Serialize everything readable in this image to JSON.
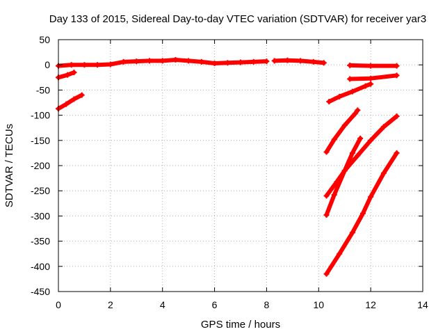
{
  "chart_data": {
    "type": "line",
    "title": "Day 133 of 2015, Sidereal Day-to-day VTEC variation (SDTVAR) for receiver yar3",
    "xlabel": "GPS time / hours",
    "ylabel": "SDTVAR / TECUs",
    "xlim": [
      0,
      14
    ],
    "ylim": [
      -450,
      50
    ],
    "xticks": [
      0,
      2,
      4,
      6,
      8,
      10,
      12,
      14
    ],
    "yticks": [
      50,
      0,
      -50,
      -100,
      -150,
      -200,
      -250,
      -300,
      -350,
      -400,
      -450
    ],
    "grid": true,
    "legend": "none",
    "color": "#ff0000",
    "series": [
      {
        "points": [
          [
            0.0,
            -2
          ],
          [
            0.5,
            0
          ],
          [
            1.0,
            0
          ],
          [
            1.5,
            0
          ],
          [
            2.0,
            1
          ],
          [
            2.5,
            6
          ],
          [
            3.0,
            7
          ],
          [
            3.5,
            8
          ],
          [
            4.0,
            8
          ],
          [
            4.5,
            10
          ],
          [
            5.0,
            8
          ],
          [
            5.5,
            6
          ],
          [
            6.0,
            3
          ],
          [
            6.5,
            4
          ],
          [
            7.0,
            5
          ],
          [
            7.5,
            6
          ],
          [
            8.0,
            7
          ]
        ]
      },
      {
        "points": [
          [
            8.3,
            8
          ],
          [
            8.8,
            9
          ],
          [
            9.3,
            8
          ],
          [
            9.8,
            6
          ],
          [
            10.2,
            4
          ]
        ]
      },
      {
        "points": [
          [
            0.0,
            -25
          ],
          [
            0.35,
            -20
          ],
          [
            0.6,
            -15
          ]
        ]
      },
      {
        "points": [
          [
            0.0,
            -87
          ],
          [
            0.3,
            -78
          ],
          [
            0.6,
            -68
          ],
          [
            0.9,
            -60
          ]
        ]
      },
      {
        "points": [
          [
            11.2,
            -1
          ],
          [
            12.0,
            -2
          ],
          [
            13.0,
            -2
          ]
        ]
      },
      {
        "points": [
          [
            11.2,
            -28
          ],
          [
            12.0,
            -27
          ],
          [
            13.0,
            -21
          ]
        ]
      },
      {
        "points": [
          [
            10.4,
            -73
          ],
          [
            10.8,
            -63
          ],
          [
            11.3,
            -53
          ],
          [
            11.8,
            -42
          ],
          [
            12.0,
            -38
          ]
        ]
      },
      {
        "points": [
          [
            10.3,
            -173
          ],
          [
            10.6,
            -148
          ],
          [
            11.0,
            -120
          ],
          [
            11.4,
            -97
          ],
          [
            11.5,
            -90
          ]
        ]
      },
      {
        "points": [
          [
            10.3,
            -260
          ],
          [
            10.7,
            -232
          ],
          [
            11.0,
            -210
          ],
          [
            11.5,
            -180
          ],
          [
            12.0,
            -150
          ],
          [
            12.5,
            -123
          ],
          [
            13.0,
            -102
          ]
        ]
      },
      {
        "points": [
          [
            10.3,
            -298
          ],
          [
            10.6,
            -258
          ],
          [
            11.0,
            -210
          ],
          [
            11.3,
            -175
          ],
          [
            11.6,
            -146
          ]
        ]
      },
      {
        "points": [
          [
            10.3,
            -415
          ],
          [
            10.8,
            -375
          ],
          [
            11.3,
            -333
          ],
          [
            11.7,
            -295
          ],
          [
            12.0,
            -262
          ],
          [
            12.5,
            -215
          ],
          [
            13.0,
            -175
          ]
        ]
      }
    ]
  }
}
